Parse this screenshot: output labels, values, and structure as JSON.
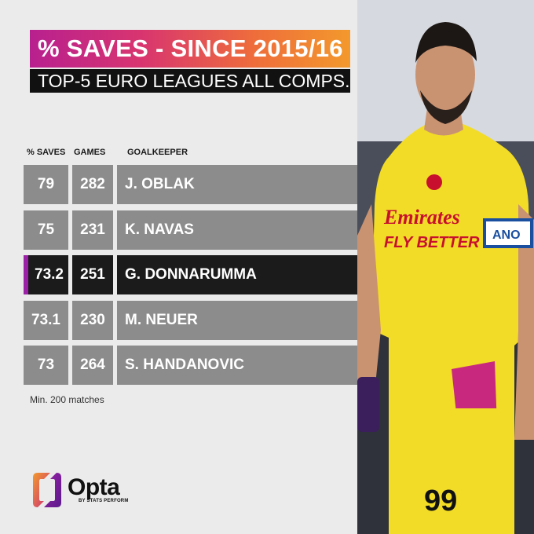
{
  "title": "% SAVES - SINCE 2015/16",
  "subtitle": "TOP-5 EURO LEAGUES ALL COMPS.",
  "footnote": "Min. 200 matches",
  "brand": {
    "name": "Opta",
    "sub": "BY STATS PERFORM"
  },
  "colors": {
    "row_normal": "#8c8c8c",
    "row_highlight": "#1b1b1b",
    "accent_purple": "#9b21a6",
    "shirt_yellow": "#f2dc27"
  },
  "photo": {
    "shirt_number": "99",
    "sponsor_line1": "Emirates",
    "sponsor_line2": "FLY BETTER",
    "armband": "ANO"
  },
  "chart_data": {
    "type": "table",
    "columns": [
      "% SAVES",
      "GAMES",
      "GOALKEEPER"
    ],
    "rows": [
      {
        "saves": "79",
        "games": "282",
        "goalkeeper": "J. OBLAK",
        "highlight": false
      },
      {
        "saves": "75",
        "games": "231",
        "goalkeeper": "K. NAVAS",
        "highlight": false
      },
      {
        "saves": "73.2",
        "games": "251",
        "goalkeeper": "G. DONNARUMMA",
        "highlight": true
      },
      {
        "saves": "73.1",
        "games": "230",
        "goalkeeper": "M. NEUER",
        "highlight": false
      },
      {
        "saves": "73",
        "games": "264",
        "goalkeeper": "S. HANDANOVIC",
        "highlight": false
      }
    ]
  }
}
